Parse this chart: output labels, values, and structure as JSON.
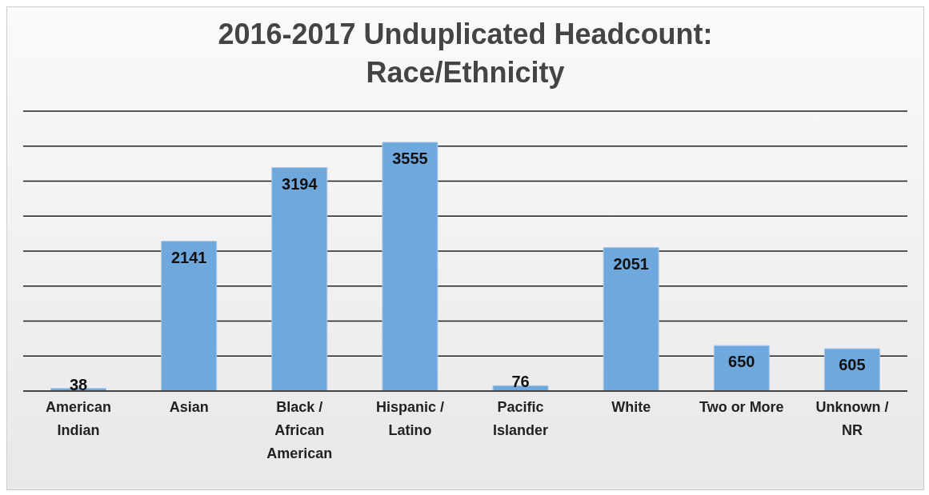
{
  "chart_data": {
    "type": "bar",
    "title": "2016-2017 Unduplicated Headcount: Race/Ethnicity",
    "categories": [
      "American Indian",
      "Asian",
      "Black / African American",
      "Hispanic / Latino",
      "Pacific Islander",
      "White",
      "Two or More",
      "Unknown / NR"
    ],
    "values": [
      38,
      2141,
      3194,
      3555,
      76,
      2051,
      650,
      605
    ],
    "color": "#6fa8dc",
    "data_labels": true,
    "tick_labels": "x",
    "grid": "y",
    "legend": false
  }
}
